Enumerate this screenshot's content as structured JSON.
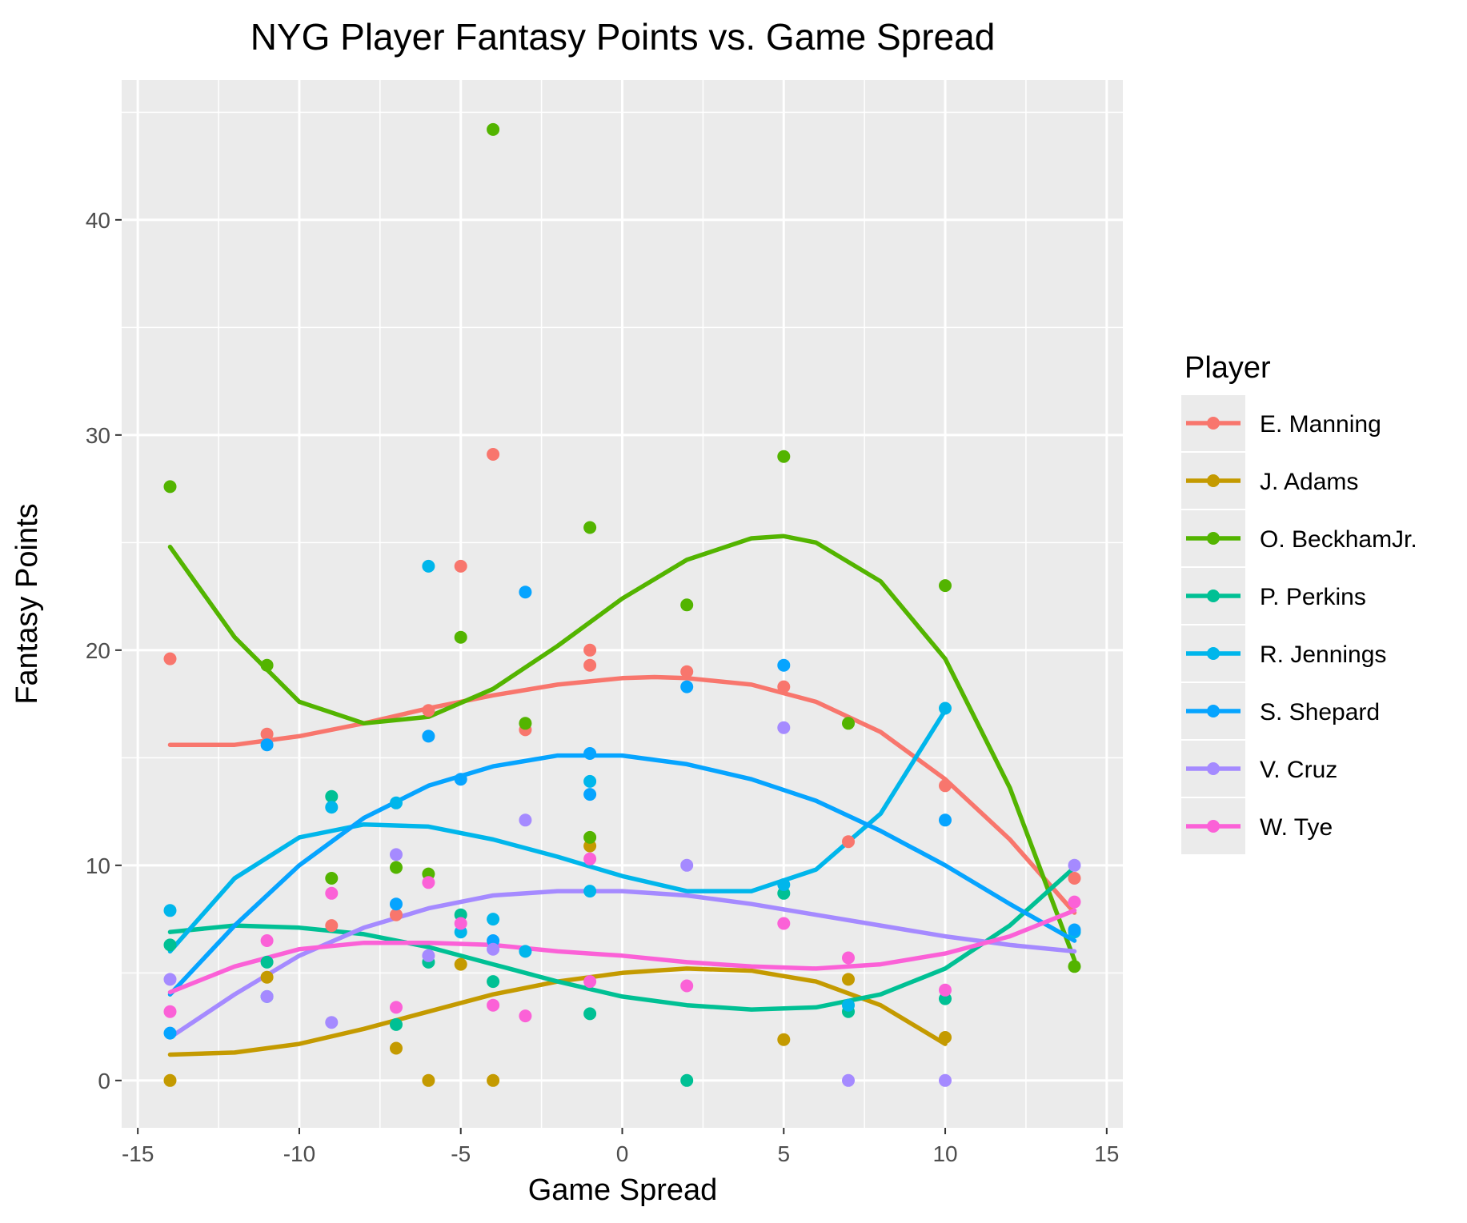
{
  "chart_data": {
    "type": "scatter",
    "title": "NYG Player Fantasy Points vs. Game Spread",
    "xlabel": "Game Spread",
    "ylabel": "Fantasy Points",
    "xlim": [
      -15.5,
      15.5
    ],
    "ylim": [
      -2.2,
      46.5
    ],
    "x_ticks": [
      -15,
      -10,
      -5,
      0,
      5,
      10,
      15
    ],
    "y_ticks": [
      0,
      10,
      20,
      30,
      40
    ],
    "grid": true,
    "legend": {
      "title": "Player",
      "position": "right"
    },
    "series": [
      {
        "name": "E. Manning",
        "color": "#F8766D",
        "points": [
          [
            -14,
            19.6
          ],
          [
            -11,
            16.1
          ],
          [
            -9,
            7.2
          ],
          [
            -7,
            7.7
          ],
          [
            -6,
            17.2
          ],
          [
            -5,
            23.9
          ],
          [
            -4,
            29.1
          ],
          [
            -3,
            16.3
          ],
          [
            -1,
            20.0
          ],
          [
            -1,
            19.3
          ],
          [
            2,
            19.0
          ],
          [
            5,
            18.3
          ],
          [
            7,
            11.1
          ],
          [
            10,
            13.7
          ],
          [
            14,
            9.4
          ]
        ],
        "smooth": [
          [
            -14,
            15.6
          ],
          [
            -12,
            15.6
          ],
          [
            -10,
            16.0
          ],
          [
            -8,
            16.6
          ],
          [
            -6,
            17.3
          ],
          [
            -4,
            17.9
          ],
          [
            -2,
            18.4
          ],
          [
            0,
            18.7
          ],
          [
            1,
            18.75
          ],
          [
            2,
            18.7
          ],
          [
            4,
            18.4
          ],
          [
            6,
            17.6
          ],
          [
            8,
            16.2
          ],
          [
            10,
            14.0
          ],
          [
            12,
            11.2
          ],
          [
            14,
            7.8
          ]
        ]
      },
      {
        "name": "J. Adams",
        "color": "#C49A00",
        "points": [
          [
            -14,
            0.0
          ],
          [
            -11,
            4.8
          ],
          [
            -7,
            1.5
          ],
          [
            -6,
            0.0
          ],
          [
            -5,
            5.4
          ],
          [
            -4,
            0.0
          ],
          [
            -1,
            10.9
          ],
          [
            5,
            1.9
          ],
          [
            7,
            4.7
          ],
          [
            10,
            2.0
          ]
        ],
        "smooth": [
          [
            -14,
            1.2
          ],
          [
            -12,
            1.3
          ],
          [
            -10,
            1.7
          ],
          [
            -8,
            2.4
          ],
          [
            -6,
            3.2
          ],
          [
            -4,
            4.0
          ],
          [
            -2,
            4.6
          ],
          [
            0,
            5.0
          ],
          [
            2,
            5.2
          ],
          [
            4,
            5.1
          ],
          [
            6,
            4.6
          ],
          [
            8,
            3.5
          ],
          [
            10,
            1.7
          ]
        ]
      },
      {
        "name": "O. BeckhamJr.",
        "color": "#53B400",
        "points": [
          [
            -14,
            27.6
          ],
          [
            -11,
            19.3
          ],
          [
            -9,
            9.4
          ],
          [
            -7,
            9.9
          ],
          [
            -6,
            9.6
          ],
          [
            -5,
            20.6
          ],
          [
            -4,
            44.2
          ],
          [
            -3,
            16.6
          ],
          [
            -1,
            25.7
          ],
          [
            -1,
            11.3
          ],
          [
            2,
            22.1
          ],
          [
            5,
            29.0
          ],
          [
            7,
            16.6
          ],
          [
            10,
            23.0
          ],
          [
            14,
            5.3
          ]
        ],
        "smooth": [
          [
            -14,
            24.8
          ],
          [
            -12,
            20.6
          ],
          [
            -10,
            17.6
          ],
          [
            -8,
            16.6
          ],
          [
            -6,
            16.9
          ],
          [
            -4,
            18.2
          ],
          [
            -2,
            20.2
          ],
          [
            0,
            22.4
          ],
          [
            2,
            24.2
          ],
          [
            4,
            25.2
          ],
          [
            5,
            25.3
          ],
          [
            6,
            25.0
          ],
          [
            8,
            23.2
          ],
          [
            10,
            19.6
          ],
          [
            12,
            13.6
          ],
          [
            14,
            5.6
          ]
        ]
      },
      {
        "name": "P. Perkins",
        "color": "#00C094",
        "points": [
          [
            -14,
            6.3
          ],
          [
            -11,
            5.5
          ],
          [
            -9,
            13.2
          ],
          [
            -7,
            2.6
          ],
          [
            -6,
            5.5
          ],
          [
            -5,
            7.7
          ],
          [
            -4,
            4.6
          ],
          [
            -1,
            3.1
          ],
          [
            2,
            0.0
          ],
          [
            5,
            8.7
          ],
          [
            7,
            3.2
          ],
          [
            10,
            3.8
          ]
        ],
        "smooth": [
          [
            -14,
            6.9
          ],
          [
            -12,
            7.2
          ],
          [
            -10,
            7.1
          ],
          [
            -8,
            6.8
          ],
          [
            -6,
            6.2
          ],
          [
            -4,
            5.4
          ],
          [
            -2,
            4.6
          ],
          [
            0,
            3.9
          ],
          [
            2,
            3.5
          ],
          [
            4,
            3.3
          ],
          [
            6,
            3.4
          ],
          [
            8,
            4.0
          ],
          [
            10,
            5.2
          ],
          [
            12,
            7.2
          ],
          [
            14,
            9.9
          ]
        ]
      },
      {
        "name": "R. Jennings",
        "color": "#00B6EB",
        "points": [
          [
            -14,
            7.9
          ],
          [
            -11,
            3.9
          ],
          [
            -9,
            12.7
          ],
          [
            -7,
            12.9
          ],
          [
            -6,
            23.9
          ],
          [
            -5,
            6.9
          ],
          [
            -4,
            7.5
          ],
          [
            -3,
            6.0
          ],
          [
            -1,
            13.9
          ],
          [
            -1,
            8.8
          ],
          [
            5,
            9.1
          ],
          [
            7,
            3.5
          ],
          [
            10,
            17.3
          ],
          [
            14,
            6.9
          ]
        ],
        "smooth": [
          [
            -14,
            6.0
          ],
          [
            -12,
            9.4
          ],
          [
            -10,
            11.3
          ],
          [
            -8,
            11.9
          ],
          [
            -6,
            11.8
          ],
          [
            -4,
            11.2
          ],
          [
            -2,
            10.4
          ],
          [
            0,
            9.5
          ],
          [
            2,
            8.8
          ],
          [
            4,
            8.8
          ],
          [
            6,
            9.8
          ],
          [
            8,
            12.4
          ],
          [
            10,
            17.2
          ]
        ]
      },
      {
        "name": "S. Shepard",
        "color": "#06A4FF",
        "points": [
          [
            -14,
            2.2
          ],
          [
            -11,
            15.6
          ],
          [
            -7,
            8.2
          ],
          [
            -6,
            16.0
          ],
          [
            -5,
            14.0
          ],
          [
            -4,
            6.5
          ],
          [
            -3,
            22.7
          ],
          [
            -1,
            15.2
          ],
          [
            -1,
            13.3
          ],
          [
            2,
            18.3
          ],
          [
            5,
            19.3
          ],
          [
            10,
            12.1
          ],
          [
            14,
            7.0
          ]
        ],
        "smooth": [
          [
            -14,
            4.0
          ],
          [
            -12,
            7.2
          ],
          [
            -10,
            10.0
          ],
          [
            -8,
            12.2
          ],
          [
            -6,
            13.7
          ],
          [
            -4,
            14.6
          ],
          [
            -2,
            15.1
          ],
          [
            0,
            15.1
          ],
          [
            2,
            14.7
          ],
          [
            4,
            14.0
          ],
          [
            6,
            13.0
          ],
          [
            8,
            11.6
          ],
          [
            10,
            10.0
          ],
          [
            12,
            8.2
          ],
          [
            14,
            6.5
          ]
        ]
      },
      {
        "name": "V. Cruz",
        "color": "#A58AFF",
        "points": [
          [
            -14,
            4.7
          ],
          [
            -11,
            3.9
          ],
          [
            -9,
            2.7
          ],
          [
            -7,
            10.5
          ],
          [
            -6,
            5.8
          ],
          [
            -4,
            6.1
          ],
          [
            -3,
            12.1
          ],
          [
            2,
            10.0
          ],
          [
            5,
            16.4
          ],
          [
            7,
            0.0
          ],
          [
            10,
            0.0
          ],
          [
            14,
            10.0
          ]
        ],
        "smooth": [
          [
            -14,
            2.0
          ],
          [
            -12,
            4.0
          ],
          [
            -10,
            5.8
          ],
          [
            -8,
            7.1
          ],
          [
            -6,
            8.0
          ],
          [
            -4,
            8.6
          ],
          [
            -2,
            8.8
          ],
          [
            0,
            8.8
          ],
          [
            2,
            8.6
          ],
          [
            4,
            8.2
          ],
          [
            6,
            7.7
          ],
          [
            8,
            7.2
          ],
          [
            10,
            6.7
          ],
          [
            12,
            6.3
          ],
          [
            14,
            6.0
          ]
        ]
      },
      {
        "name": "W. Tye",
        "color": "#FB61D7",
        "points": [
          [
            -14,
            3.2
          ],
          [
            -11,
            6.5
          ],
          [
            -9,
            8.7
          ],
          [
            -7,
            3.4
          ],
          [
            -6,
            9.2
          ],
          [
            -5,
            7.3
          ],
          [
            -4,
            3.5
          ],
          [
            -3,
            3.0
          ],
          [
            -1,
            10.3
          ],
          [
            -1,
            4.6
          ],
          [
            2,
            4.4
          ],
          [
            5,
            7.3
          ],
          [
            7,
            5.7
          ],
          [
            10,
            4.2
          ],
          [
            14,
            8.3
          ]
        ],
        "smooth": [
          [
            -14,
            4.1
          ],
          [
            -12,
            5.3
          ],
          [
            -10,
            6.1
          ],
          [
            -8,
            6.4
          ],
          [
            -6,
            6.4
          ],
          [
            -4,
            6.3
          ],
          [
            -2,
            6.0
          ],
          [
            0,
            5.8
          ],
          [
            2,
            5.5
          ],
          [
            4,
            5.3
          ],
          [
            6,
            5.2
          ],
          [
            8,
            5.4
          ],
          [
            10,
            5.9
          ],
          [
            12,
            6.7
          ],
          [
            14,
            7.9
          ]
        ]
      }
    ]
  }
}
